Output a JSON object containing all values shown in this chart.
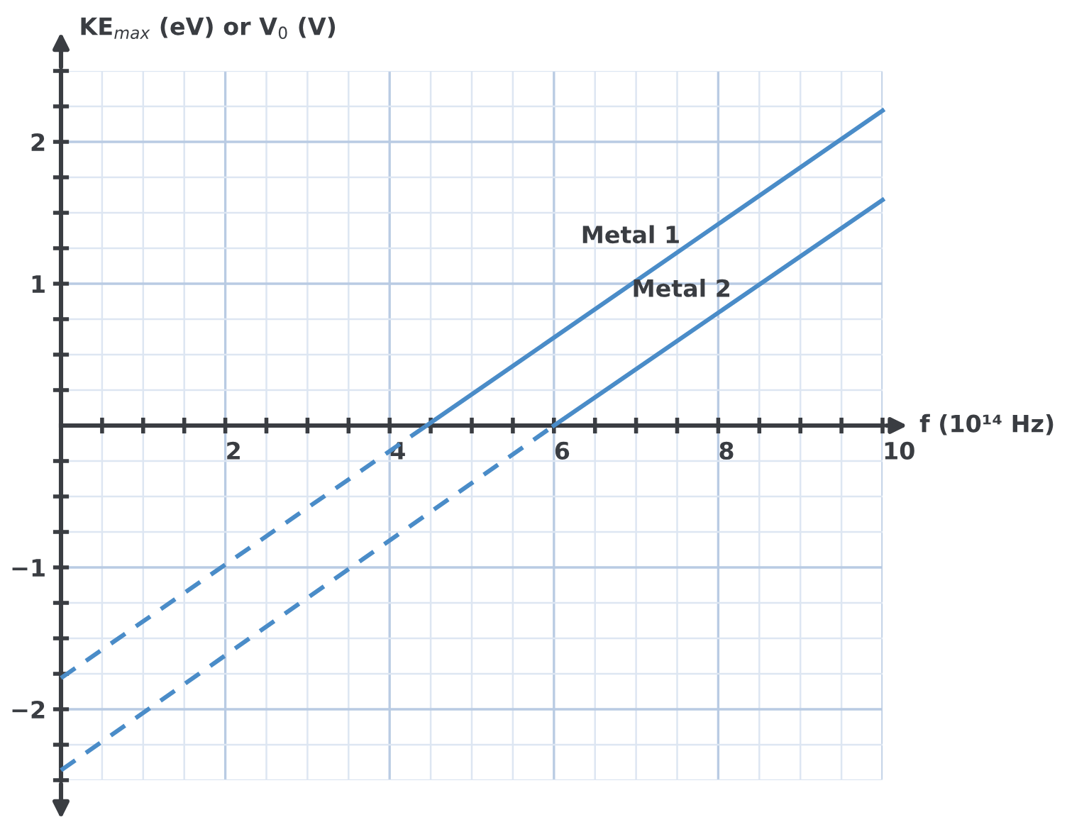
{
  "chart_data": {
    "type": "line",
    "xlabel": "f (10¹⁴ Hz)",
    "ylabel": "KE$_{max}$ (eV) or V$_{0}$ (V)",
    "series": [
      {
        "name": "Metal 1",
        "x": [
          4.45,
          10
        ],
        "values": [
          0,
          2.22
        ],
        "color": "#4a8cc8",
        "line_style": "solid"
      },
      {
        "x": [
          0,
          4.45
        ],
        "values": [
          -1.78,
          0
        ],
        "color": "#4a8cc8",
        "line_style": "dashed"
      },
      {
        "name": "Metal 2",
        "x": [
          6.0,
          10
        ],
        "values": [
          0,
          1.59
        ],
        "color": "#4a8cc8",
        "line_style": "solid"
      },
      {
        "x": [
          0,
          6.0
        ],
        "values": [
          -2.43,
          0
        ],
        "color": "#4a8cc8",
        "line_style": "dashed"
      }
    ],
    "xlim": [
      0,
      10
    ],
    "ylim": [
      -2.5,
      2.5
    ],
    "xticks": [
      {
        "value": 0.5,
        "label": null
      },
      {
        "value": 1,
        "label": null
      },
      {
        "value": 1.5,
        "label": null
      },
      2,
      {
        "value": 2.5,
        "label": null
      },
      {
        "value": 3,
        "label": null
      },
      {
        "value": 3.5,
        "label": null
      },
      4,
      {
        "value": 4.5,
        "label": null
      },
      {
        "value": 5,
        "label": null
      },
      {
        "value": 5.5,
        "label": null
      },
      6,
      {
        "value": 6.5,
        "label": null
      },
      {
        "value": 7,
        "label": null
      },
      {
        "value": 7.5,
        "label": null
      },
      8,
      {
        "value": 8.5,
        "label": null
      },
      {
        "value": 9,
        "label": null
      },
      {
        "value": 9.5,
        "label": null
      },
      10
    ],
    "yticks": [
      {
        "value": -2.5,
        "label": null
      },
      {
        "value": -2.25,
        "label": null
      },
      -2,
      {
        "value": -1.75,
        "label": null
      },
      {
        "value": -1.5,
        "label": null
      },
      {
        "value": -1.25,
        "label": null
      },
      -1,
      {
        "value": -0.75,
        "label": null
      },
      {
        "value": -0.5,
        "label": null
      },
      {
        "value": -0.25,
        "label": null
      },
      {
        "value": 0.25,
        "label": null
      },
      {
        "value": 0.5,
        "label": null
      },
      {
        "value": 0.75,
        "label": null
      },
      1,
      {
        "value": 1.25,
        "label": null
      },
      {
        "value": 1.5,
        "label": null
      },
      {
        "value": 1.75,
        "label": null
      },
      2,
      {
        "value": 2.25,
        "label": null
      },
      {
        "value": 2.5,
        "label": null
      }
    ],
    "grid": true,
    "marker": "none"
  }
}
